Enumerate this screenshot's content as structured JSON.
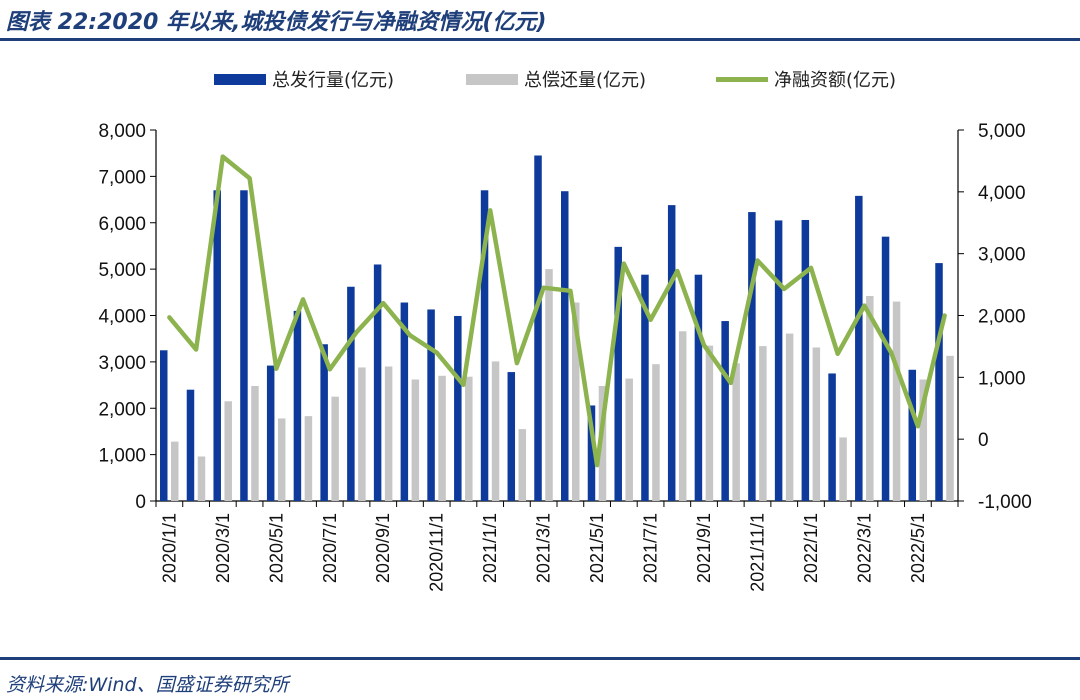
{
  "header": {
    "title": "图表 22:2020 年以来,城投债发行与净融资情况(亿元)"
  },
  "footer": {
    "source": "资料来源:Wind、国盛证券研究所"
  },
  "colors": {
    "issuance": "#0e3a9b",
    "repayment": "#c6c6c6",
    "net": "#8db34f",
    "rule": "#1f3f7a"
  },
  "chart_data": {
    "type": "bar",
    "categories": [
      "2020/1/1",
      "2020/2/1",
      "2020/3/1",
      "2020/4/1",
      "2020/5/1",
      "2020/6/1",
      "2020/7/1",
      "2020/8/1",
      "2020/9/1",
      "2020/10/1",
      "2020/11/1",
      "2020/12/1",
      "2021/1/1",
      "2021/2/1",
      "2021/3/1",
      "2021/4/1",
      "2021/5/1",
      "2021/6/1",
      "2021/7/1",
      "2021/8/1",
      "2021/9/1",
      "2021/10/1",
      "2021/11/1",
      "2021/12/1",
      "2022/1/1",
      "2022/2/1",
      "2022/3/1",
      "2022/4/1",
      "2022/5/1",
      "2022/6/1"
    ],
    "x_tick_labels": [
      "2020/1/1",
      "2020/3/1",
      "2020/5/1",
      "2020/7/1",
      "2020/9/1",
      "2020/11/1",
      "2021/1/1",
      "2021/3/1",
      "2021/5/1",
      "2021/7/1",
      "2021/9/1",
      "2021/11/1",
      "2022/1/1",
      "2022/3/1",
      "2022/5/1"
    ],
    "series": [
      {
        "name": "总发行量(亿元)",
        "type": "bar",
        "axis": "left",
        "values": [
          3250,
          2400,
          6700,
          6700,
          2920,
          4100,
          3380,
          4620,
          5100,
          4280,
          4130,
          3990,
          6700,
          2780,
          7450,
          6680,
          2060,
          5480,
          4880,
          6380,
          4880,
          3880,
          6230,
          6050,
          6060,
          2750,
          6580,
          5700,
          2830,
          5130
        ]
      },
      {
        "name": "总偿还量(亿元)",
        "type": "bar",
        "axis": "left",
        "values": [
          1280,
          960,
          2150,
          2480,
          1780,
          1830,
          2250,
          2880,
          2900,
          2620,
          2700,
          2680,
          3010,
          1550,
          5000,
          4280,
          2480,
          2640,
          2950,
          3660,
          3350,
          2970,
          3340,
          3610,
          3310,
          1370,
          4420,
          4300,
          2620,
          3130
        ]
      },
      {
        "name": "净融资额(亿元)",
        "type": "line",
        "axis": "right",
        "values": [
          1970,
          1450,
          4570,
          4220,
          1140,
          2260,
          1130,
          1730,
          2200,
          1680,
          1400,
          880,
          3700,
          1230,
          2450,
          2400,
          -420,
          2840,
          1930,
          2720,
          1520,
          910,
          2890,
          2430,
          2770,
          1380,
          2160,
          1400,
          210,
          2000
        ]
      }
    ],
    "y_left": {
      "min": 0,
      "max": 8000,
      "ticks": [
        "0",
        "1,000",
        "2,000",
        "3,000",
        "4,000",
        "5,000",
        "6,000",
        "7,000",
        "8,000"
      ]
    },
    "y_right": {
      "min": -1000,
      "max": 5000,
      "ticks": [
        "-1,000",
        "0",
        "1,000",
        "2,000",
        "3,000",
        "4,000",
        "5,000"
      ]
    },
    "legend_position": "top"
  }
}
